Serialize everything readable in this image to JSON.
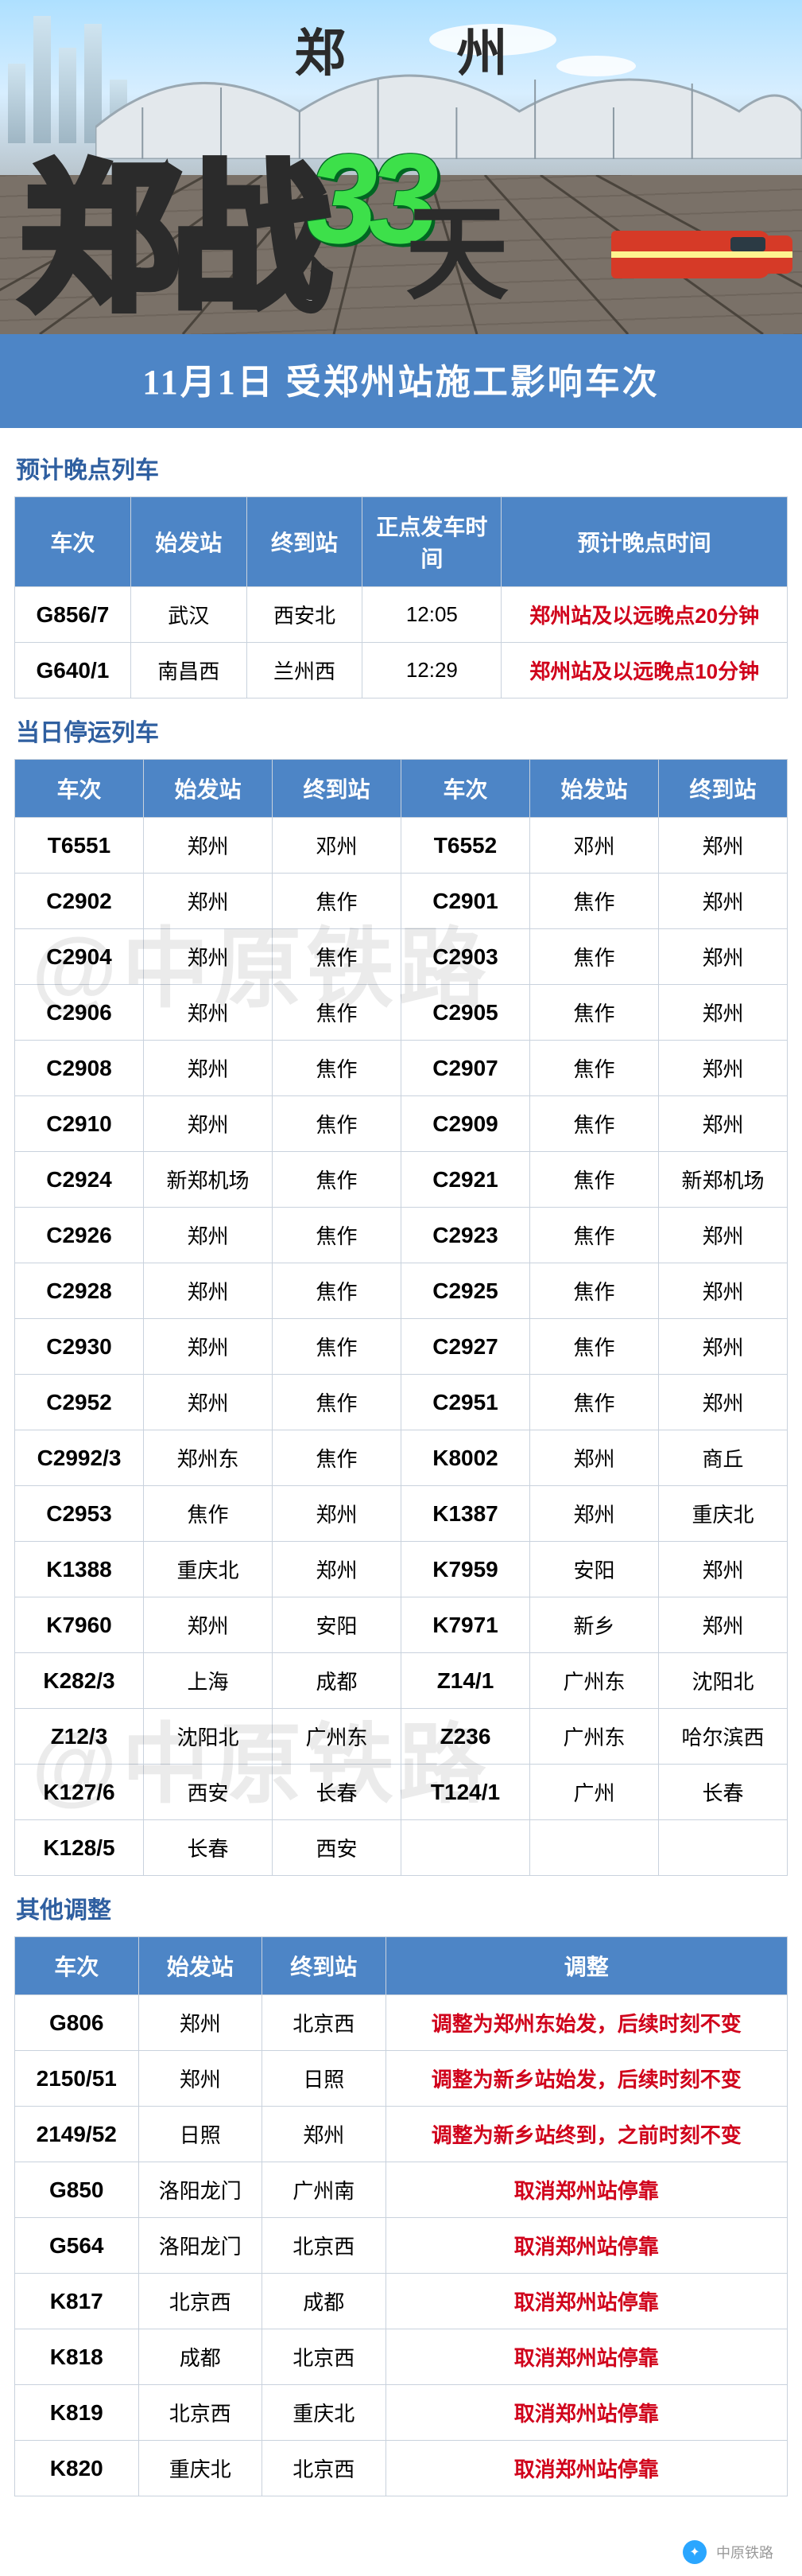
{
  "hero": {
    "top_chars": [
      "郑",
      "州"
    ],
    "title_chars": [
      "郑",
      "战"
    ],
    "number": "33",
    "tian": "天"
  },
  "banner": "11月1日 受郑州站施工影响车次",
  "section_late": {
    "title": "预计晚点列车",
    "headers": [
      "车次",
      "始发站",
      "终到站",
      "正点发车时间",
      "预计晚点时间"
    ],
    "rows": [
      [
        "G856/7",
        "武汉",
        "西安北",
        "12:05",
        "郑州站及以远晚点20分钟"
      ],
      [
        "G640/1",
        "南昌西",
        "兰州西",
        "12:29",
        "郑州站及以远晚点10分钟"
      ]
    ]
  },
  "section_cancel": {
    "title": "当日停运列车",
    "headers": [
      "车次",
      "始发站",
      "终到站",
      "车次",
      "始发站",
      "终到站"
    ],
    "rows": [
      [
        "T6551",
        "郑州",
        "邓州",
        "T6552",
        "邓州",
        "郑州"
      ],
      [
        "C2902",
        "郑州",
        "焦作",
        "C2901",
        "焦作",
        "郑州"
      ],
      [
        "C2904",
        "郑州",
        "焦作",
        "C2903",
        "焦作",
        "郑州"
      ],
      [
        "C2906",
        "郑州",
        "焦作",
        "C2905",
        "焦作",
        "郑州"
      ],
      [
        "C2908",
        "郑州",
        "焦作",
        "C2907",
        "焦作",
        "郑州"
      ],
      [
        "C2910",
        "郑州",
        "焦作",
        "C2909",
        "焦作",
        "郑州"
      ],
      [
        "C2924",
        "新郑机场",
        "焦作",
        "C2921",
        "焦作",
        "新郑机场"
      ],
      [
        "C2926",
        "郑州",
        "焦作",
        "C2923",
        "焦作",
        "郑州"
      ],
      [
        "C2928",
        "郑州",
        "焦作",
        "C2925",
        "焦作",
        "郑州"
      ],
      [
        "C2930",
        "郑州",
        "焦作",
        "C2927",
        "焦作",
        "郑州"
      ],
      [
        "C2952",
        "郑州",
        "焦作",
        "C2951",
        "焦作",
        "郑州"
      ],
      [
        "C2992/3",
        "郑州东",
        "焦作",
        "K8002",
        "郑州",
        "商丘"
      ],
      [
        "C2953",
        "焦作",
        "郑州",
        "K1387",
        "郑州",
        "重庆北"
      ],
      [
        "K1388",
        "重庆北",
        "郑州",
        "K7959",
        "安阳",
        "郑州"
      ],
      [
        "K7960",
        "郑州",
        "安阳",
        "K7971",
        "新乡",
        "郑州"
      ],
      [
        "K282/3",
        "上海",
        "成都",
        "Z14/1",
        "广州东",
        "沈阳北"
      ],
      [
        "Z12/3",
        "沈阳北",
        "广州东",
        "Z236",
        "广州东",
        "哈尔滨西"
      ],
      [
        "K127/6",
        "西安",
        "长春",
        "T124/1",
        "广州",
        "长春"
      ],
      [
        "K128/5",
        "长春",
        "西安",
        "",
        "",
        ""
      ]
    ]
  },
  "section_other": {
    "title": "其他调整",
    "headers": [
      "车次",
      "始发站",
      "终到站",
      "调整"
    ],
    "rows": [
      [
        "G806",
        "郑州",
        "北京西",
        "调整为郑州东始发，后续时刻不变"
      ],
      [
        "2150/51",
        "郑州",
        "日照",
        "调整为新乡站始发，后续时刻不变"
      ],
      [
        "2149/52",
        "日照",
        "郑州",
        "调整为新乡站终到，之前时刻不变"
      ],
      [
        "G850",
        "洛阳龙门",
        "广州南",
        "取消郑州站停靠"
      ],
      [
        "G564",
        "洛阳龙门",
        "北京西",
        "取消郑州站停靠"
      ],
      [
        "K817",
        "北京西",
        "成都",
        "取消郑州站停靠"
      ],
      [
        "K818",
        "成都",
        "北京西",
        "取消郑州站停靠"
      ],
      [
        "K819",
        "北京西",
        "重庆北",
        "取消郑州站停靠"
      ],
      [
        "K820",
        "重庆北",
        "北京西",
        "取消郑州站停靠"
      ]
    ]
  },
  "watermark": "@中原铁路",
  "footer": {
    "icon": "✦",
    "text": "中原铁路"
  },
  "colors": {
    "header_bg": "#4d85c6",
    "border": "#c9d2dd",
    "section_title": "#2f5fa0",
    "red": "#d0021b"
  },
  "widths": {
    "late": [
      "15%",
      "15%",
      "15%",
      "18%",
      "37%"
    ],
    "cancel": [
      "16.66%",
      "16.66%",
      "16.66%",
      "16.66%",
      "16.66%",
      "16.66%"
    ],
    "other": [
      "16%",
      "16%",
      "16%",
      "52%"
    ]
  }
}
